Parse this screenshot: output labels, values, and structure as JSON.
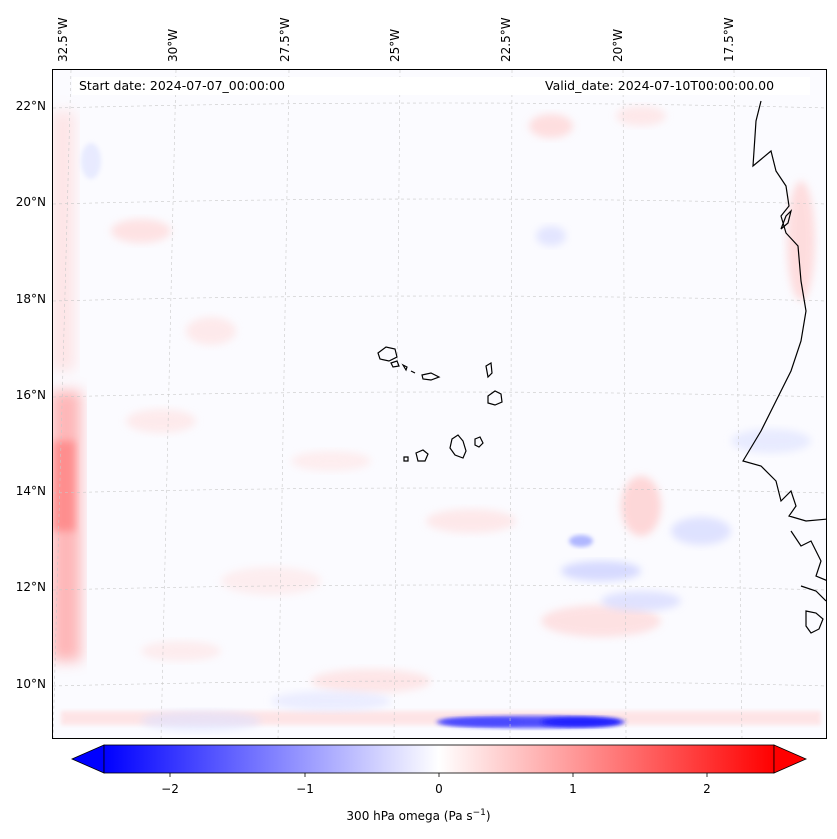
{
  "map": {
    "start_date": "Start date: 2024-07-07_00:00:00",
    "valid_date": "Valid_date: 2024-07-10T00:00:00.00",
    "longitude_labels": [
      "32.5°W",
      "30°W",
      "27.5°W",
      "25°W",
      "22.5°W",
      "20°W",
      "17.5°W"
    ],
    "latitude_labels": [
      "22°N",
      "20°N",
      "18°N",
      "16°N",
      "14°N",
      "12°N",
      "10°N"
    ],
    "region": "Cabo Verde and West African coast",
    "field": "300 hPa vertical velocity"
  },
  "colorbar": {
    "ticks": [
      "−2",
      "−1",
      "0",
      "1",
      "2"
    ],
    "label_prefix": "300 hPa omega (Pa s",
    "label_exp": "−1",
    "label_suffix": ")",
    "range": [
      -2.6,
      2.6
    ],
    "colors": {
      "negative": "#0000ff",
      "zero": "#ffffff",
      "positive": "#ff0000"
    }
  }
}
